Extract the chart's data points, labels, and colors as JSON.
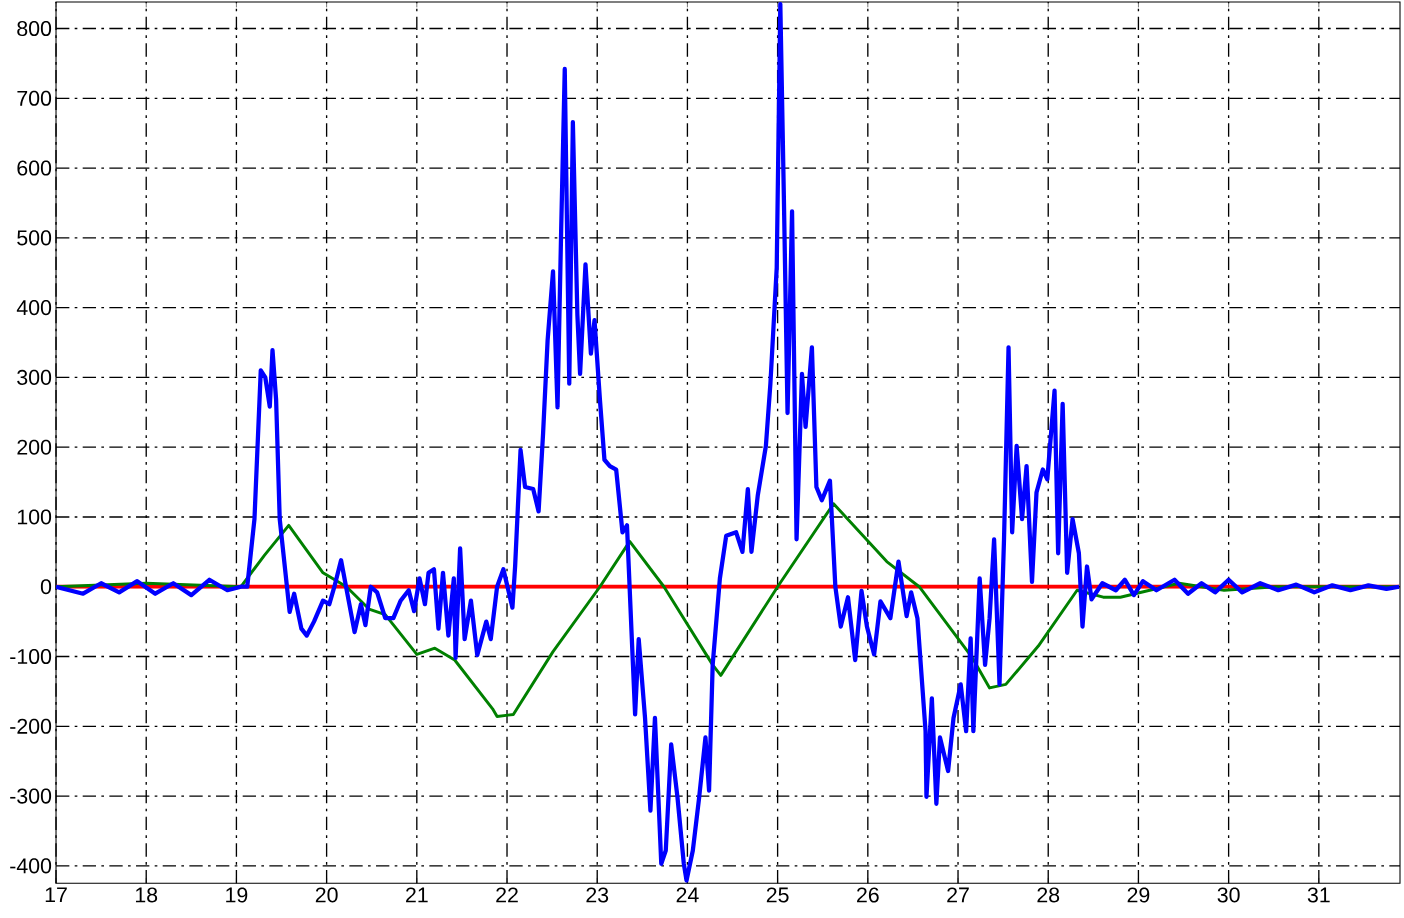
{
  "chart_data": {
    "type": "line",
    "series": [
      {
        "color": "#ff0000",
        "x": [
          17.0,
          19.05,
          20.5,
          22.0,
          23.5,
          25.0,
          26.5,
          28.0,
          29.5,
          31.0,
          31.89
        ],
        "values": [
          0,
          0,
          0,
          0,
          0,
          0,
          0,
          0,
          0,
          0,
          0
        ]
      },
      {
        "color": "#008000",
        "x": [
          17.0,
          18.0,
          19.05,
          19.31,
          19.58,
          19.96,
          20.22,
          20.47,
          20.65,
          21.0,
          21.2,
          21.42,
          21.84,
          21.89,
          22.07,
          22.51,
          23.03,
          23.36,
          23.74,
          24.28,
          24.37,
          25.0,
          25.62,
          26.21,
          26.57,
          27.16,
          27.35,
          27.53,
          27.89,
          28.32,
          28.61,
          28.8,
          29.45,
          29.95,
          30.52,
          31.89
        ],
        "values": [
          0,
          5,
          0,
          45,
          88,
          20,
          0,
          -32,
          -40,
          -97,
          -88,
          -105,
          -175,
          -186,
          -183,
          -93,
          0,
          65,
          0,
          -112,
          -127,
          0,
          119,
          36,
          0,
          -102,
          -145,
          -140,
          -85,
          -5,
          -15,
          -15,
          5,
          -5,
          0,
          0
        ]
      },
      {
        "color": "#0000ff",
        "x": [
          17.0,
          17.3,
          17.5,
          17.7,
          17.9,
          18.1,
          18.3,
          18.5,
          18.7,
          18.9,
          19.05,
          19.12,
          19.2,
          19.27,
          19.32,
          19.37,
          19.4,
          19.44,
          19.48,
          19.59,
          19.64,
          19.72,
          19.78,
          19.86,
          19.96,
          20.03,
          20.09,
          20.16,
          20.22,
          20.31,
          20.38,
          20.43,
          20.49,
          20.56,
          20.65,
          20.74,
          20.82,
          20.91,
          20.97,
          21.03,
          21.09,
          21.13,
          21.19,
          21.24,
          21.29,
          21.35,
          21.41,
          21.43,
          21.48,
          21.53,
          21.6,
          21.67,
          21.77,
          21.82,
          21.89,
          21.96,
          22.06,
          22.09,
          22.15,
          22.2,
          22.29,
          22.35,
          22.4,
          22.45,
          22.51,
          22.56,
          22.6,
          22.64,
          22.69,
          22.73,
          22.78,
          22.81,
          22.87,
          22.93,
          22.97,
          23.03,
          23.08,
          23.14,
          23.21,
          23.28,
          23.33,
          23.38,
          23.42,
          23.46,
          23.53,
          23.59,
          23.64,
          23.71,
          23.76,
          23.82,
          23.89,
          23.96,
          23.99,
          24.06,
          24.13,
          24.2,
          24.24,
          24.28,
          24.36,
          24.43,
          24.54,
          24.61,
          24.67,
          24.71,
          24.78,
          24.87,
          24.92,
          24.99,
          25.03,
          25.07,
          25.11,
          25.16,
          25.21,
          25.27,
          25.31,
          25.38,
          25.43,
          25.49,
          25.58,
          25.64,
          25.7,
          25.78,
          25.86,
          25.93,
          25.99,
          26.07,
          26.14,
          26.25,
          26.34,
          26.43,
          26.48,
          26.55,
          26.64,
          26.65,
          26.71,
          26.76,
          26.8,
          26.89,
          26.95,
          27.03,
          27.09,
          27.14,
          27.17,
          27.24,
          27.3,
          27.35,
          27.4,
          27.46,
          27.51,
          27.56,
          27.6,
          27.65,
          27.71,
          27.76,
          27.82,
          27.87,
          27.94,
          27.99,
          28.07,
          28.11,
          28.16,
          28.21,
          28.27,
          28.34,
          28.38,
          28.43,
          28.48,
          28.6,
          28.75,
          28.85,
          28.95,
          29.05,
          29.2,
          29.4,
          29.55,
          29.7,
          29.85,
          30.0,
          30.15,
          30.35,
          30.55,
          30.75,
          30.95,
          31.15,
          31.35,
          31.55,
          31.75,
          31.89
        ],
        "values": [
          0,
          -10,
          5,
          -8,
          8,
          -10,
          5,
          -12,
          10,
          -5,
          0,
          0,
          97,
          310,
          300,
          258,
          339,
          268,
          97,
          -36,
          -10,
          -60,
          -70,
          -50,
          -20,
          -25,
          2,
          38,
          -3,
          -65,
          -25,
          -55,
          0,
          -8,
          -45,
          -45,
          -20,
          -5,
          -35,
          12,
          -25,
          20,
          25,
          -60,
          20,
          -70,
          12,
          -102,
          55,
          -75,
          -20,
          -98,
          -50,
          -75,
          0,
          25,
          -30,
          30,
          196,
          143,
          140,
          108,
          220,
          353,
          452,
          257,
          510,
          742,
          291,
          666,
          390,
          305,
          462,
          334,
          382,
          268,
          182,
          173,
          168,
          78,
          88,
          -64,
          -183,
          -75,
          -188,
          -321,
          -188,
          -397,
          -378,
          -226,
          -302,
          -397,
          -421,
          -378,
          -302,
          -216,
          -292,
          -112,
          12,
          73,
          78,
          50,
          140,
          50,
          131,
          202,
          291,
          457,
          835,
          553,
          249,
          538,
          68,
          305,
          229,
          343,
          143,
          124,
          152,
          0,
          -57,
          -15,
          -105,
          -6,
          -57,
          -97,
          -21,
          -45,
          36,
          -42,
          -8,
          -45,
          -207,
          -301,
          -160,
          -311,
          -216,
          -264,
          -188,
          -140,
          -207,
          -74,
          -207,
          12,
          -112,
          -45,
          68,
          -140,
          68,
          343,
          78,
          202,
          97,
          173,
          7,
          135,
          168,
          154,
          281,
          48,
          262,
          20,
          97,
          48,
          -57,
          29,
          -18,
          5,
          -5,
          10,
          -12,
          8,
          -5,
          10,
          -10,
          5,
          -8,
          10,
          -8,
          5,
          -5,
          3,
          -8,
          2,
          -5,
          2,
          -3,
          0
        ]
      }
    ],
    "xlim": [
      17,
      31.9
    ],
    "ylim": [
      -425,
      838
    ],
    "xticks": [
      17,
      18,
      19,
      20,
      21,
      22,
      23,
      24,
      25,
      26,
      27,
      28,
      29,
      30,
      31
    ],
    "yticks": [
      -400,
      -300,
      -200,
      -100,
      0,
      100,
      200,
      300,
      400,
      500,
      600,
      700,
      800
    ],
    "grid": true
  }
}
